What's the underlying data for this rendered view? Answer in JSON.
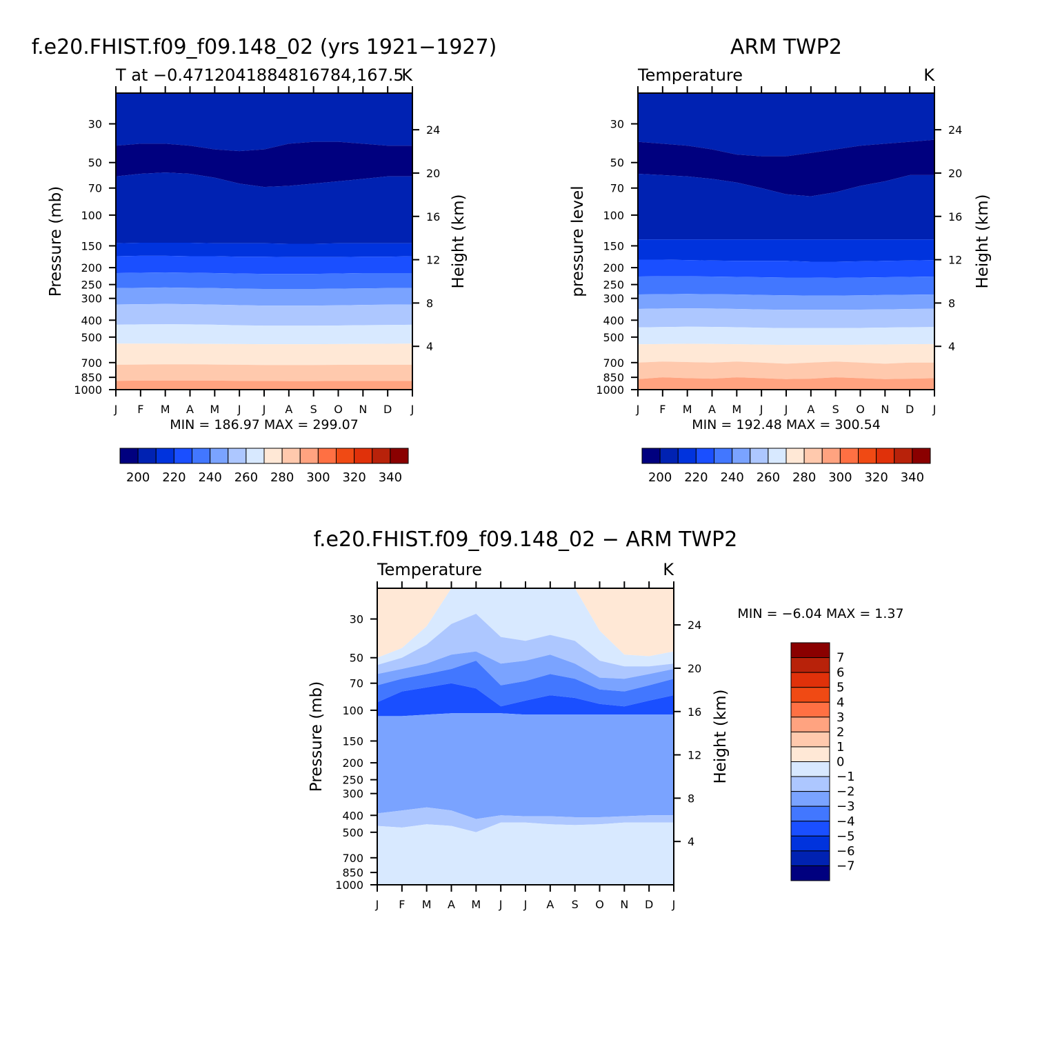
{
  "colors": {
    "abs_levels": [
      "#00007f",
      "#0022b2",
      "#0033dd",
      "#1a4fff",
      "#4277ff",
      "#7aa3ff",
      "#adc7ff",
      "#d8e9ff",
      "#ffe8d6",
      "#ffc9ad",
      "#ffa380",
      "#ff7043",
      "#f04a14",
      "#e0310a",
      "#b8220a",
      "#8a0000"
    ],
    "diff_levels": [
      "#00007f",
      "#0022b2",
      "#0033dd",
      "#1a4fff",
      "#4277ff",
      "#7aa3ff",
      "#adc7ff",
      "#d8e9ff",
      "#ffe8d6",
      "#ffc9ad",
      "#ffa380",
      "#ff7043",
      "#f04a14",
      "#e0310a",
      "#b8220a",
      "#8a0000"
    ]
  },
  "chart_data": [
    {
      "type": "heatmap",
      "title": "f.e20.FHIST.f09_f09.148_02 (yrs 1921−1927)",
      "subtitle": "T at −0.4712041884816784,167.5",
      "units": "K",
      "ylabel": "Pressure (mb)",
      "ylabel_right": "Height (km)",
      "y_scale": "log",
      "ylim": [
        1000,
        20
      ],
      "x_ticks": [
        "J",
        "F",
        "M",
        "A",
        "M",
        "J",
        "J",
        "A",
        "S",
        "O",
        "N",
        "D",
        "J"
      ],
      "y_ticks": [
        30,
        50,
        70,
        100,
        150,
        200,
        250,
        300,
        400,
        500,
        700,
        850,
        1000
      ],
      "y_ticks_right": [
        24,
        20,
        16,
        12,
        8,
        4
      ],
      "stats": "MIN = 186.97 MAX = 299.07",
      "colorbar_labels": [
        "200",
        "220",
        "240",
        "260",
        "280",
        "300",
        "320",
        "340"
      ],
      "contour_boundaries_mb": [
        [
          40,
          39,
          39,
          40,
          42,
          43,
          42,
          39,
          38,
          38,
          39,
          40,
          40
        ],
        [
          60,
          58,
          57,
          58,
          61,
          66,
          69,
          68,
          66,
          64,
          62,
          60,
          60
        ],
        [
          145,
          144,
          144,
          144,
          145,
          145,
          145,
          146,
          146,
          145,
          145,
          145,
          145
        ],
        [
          172,
          171,
          171,
          172,
          172,
          173,
          173,
          174,
          174,
          174,
          173,
          173,
          172
        ],
        [
          215,
          214,
          213,
          214,
          215,
          216,
          217,
          217,
          217,
          216,
          215,
          215,
          215
        ],
        [
          262,
          261,
          260,
          261,
          262,
          264,
          265,
          265,
          265,
          264,
          263,
          262,
          262
        ],
        [
          325,
          324,
          323,
          324,
          326,
          328,
          330,
          330,
          330,
          329,
          327,
          326,
          325
        ],
        [
          425,
          423,
          422,
          423,
          425,
          428,
          430,
          430,
          430,
          429,
          427,
          426,
          425
        ],
        [
          545,
          545,
          545,
          546,
          547,
          548,
          549,
          549,
          549,
          548,
          547,
          546,
          545
        ],
        [
          720,
          718,
          716,
          716,
          718,
          720,
          722,
          722,
          722,
          721,
          720,
          720,
          720
        ],
        [
          890,
          888,
          886,
          886,
          888,
          890,
          892,
          893,
          893,
          892,
          891,
          890,
          890
        ]
      ]
    },
    {
      "type": "heatmap",
      "title": "ARM TWP2",
      "subtitle": "Temperature",
      "units": "K",
      "ylabel": "pressure level",
      "ylabel_right": "Height (km)",
      "y_scale": "log",
      "ylim": [
        1000,
        20
      ],
      "x_ticks": [
        "J",
        "F",
        "M",
        "A",
        "M",
        "J",
        "J",
        "A",
        "S",
        "O",
        "N",
        "D",
        "J"
      ],
      "y_ticks": [
        30,
        50,
        70,
        100,
        150,
        200,
        250,
        300,
        400,
        500,
        700,
        850,
        1000
      ],
      "y_ticks_right": [
        24,
        20,
        16,
        12,
        8,
        4
      ],
      "stats": "MIN = 192.48 MAX = 300.54",
      "colorbar_labels": [
        "200",
        "220",
        "240",
        "260",
        "280",
        "300",
        "320",
        "340"
      ],
      "contour_boundaries_mb": [
        [
          38,
          39,
          40,
          42,
          45,
          46,
          46,
          44,
          42,
          40,
          39,
          38,
          37
        ],
        [
          58,
          59,
          60,
          62,
          65,
          70,
          76,
          78,
          74,
          68,
          64,
          59,
          59
        ],
        [
          138,
          138,
          138,
          138,
          138,
          138,
          138,
          138,
          138,
          138,
          138,
          138,
          138
        ],
        [
          180,
          180,
          181,
          182,
          183,
          183,
          183,
          185,
          185,
          184,
          183,
          182,
          181
        ],
        [
          225,
          224,
          224,
          225,
          226,
          227,
          228,
          228,
          229,
          228,
          227,
          226,
          225
        ],
        [
          285,
          284,
          283,
          284,
          285,
          287,
          288,
          289,
          289,
          288,
          287,
          286,
          285
        ],
        [
          345,
          343,
          342,
          343,
          345,
          347,
          349,
          349,
          349,
          348,
          347,
          345,
          344
        ],
        [
          440,
          438,
          436,
          437,
          439,
          442,
          444,
          444,
          444,
          443,
          441,
          439,
          438
        ],
        [
          550,
          548,
          546,
          547,
          549,
          552,
          554,
          554,
          554,
          553,
          551,
          549,
          548
        ],
        [
          700,
          690,
          695,
          700,
          690,
          700,
          710,
          700,
          690,
          700,
          710,
          700,
          700
        ],
        [
          870,
          850,
          860,
          865,
          850,
          860,
          870,
          865,
          850,
          860,
          870,
          865,
          860
        ]
      ]
    },
    {
      "type": "heatmap",
      "title": "f.e20.FHIST.f09_f09.148_02 − ARM TWP2",
      "subtitle": "Temperature",
      "units": "K",
      "ylabel": "Pressure (mb)",
      "ylabel_right": "Height (km)",
      "y_scale": "log",
      "ylim": [
        1000,
        20
      ],
      "x_ticks": [
        "J",
        "F",
        "M",
        "A",
        "M",
        "J",
        "J",
        "A",
        "S",
        "O",
        "N",
        "D",
        "J"
      ],
      "y_ticks": [
        30,
        50,
        70,
        100,
        150,
        200,
        250,
        300,
        400,
        500,
        700,
        850,
        1000
      ],
      "y_ticks_right": [
        24,
        20,
        16,
        12,
        8,
        4
      ],
      "stats": "MIN =   −6.04 MAX =    1.37",
      "colorbar_labels": [
        "7",
        "6",
        "5",
        "4",
        "3",
        "2",
        "1",
        "0",
        "−1",
        "−2",
        "−3",
        "−4",
        "−5",
        "−6",
        "−7"
      ],
      "contour_boundaries_mb": [
        [
          50,
          44,
          33,
          20,
          20,
          20,
          20,
          20,
          20,
          35,
          48,
          49,
          46
        ],
        [
          55,
          50,
          42,
          32,
          28,
          38,
          40,
          37,
          40,
          52,
          56,
          56,
          54
        ],
        [
          62,
          58,
          54,
          48,
          46,
          54,
          52,
          48,
          54,
          65,
          66,
          62,
          58
        ],
        [
          72,
          66,
          62,
          58,
          52,
          72,
          68,
          62,
          66,
          76,
          78,
          72,
          66
        ],
        [
          90,
          78,
          74,
          70,
          75,
          95,
          88,
          82,
          85,
          92,
          95,
          88,
          82
        ],
        [
          108,
          108,
          106,
          104,
          104,
          104,
          106,
          106,
          106,
          106,
          106,
          106,
          106
        ],
        [
          390,
          375,
          360,
          375,
          420,
          400,
          405,
          405,
          410,
          410,
          405,
          400,
          400
        ],
        [
          460,
          470,
          450,
          460,
          500,
          440,
          440,
          450,
          455,
          450,
          440,
          440,
          440
        ]
      ]
    }
  ]
}
